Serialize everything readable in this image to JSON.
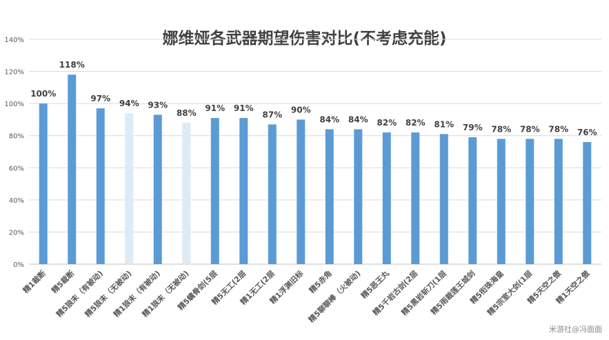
{
  "watermark": "米游社@冯面面",
  "chart_data": {
    "type": "bar",
    "title": "娜维娅各武器期望伤害对比(不考虑充能)",
    "xlabel": "",
    "ylabel": "",
    "ylim": [
      0,
      140
    ],
    "ytick_labels": [
      "0%",
      "20%",
      "40%",
      "60%",
      "80%",
      "100%",
      "120%",
      "140%"
    ],
    "grid": true,
    "colors": {
      "primary": "#5b9bd5",
      "light": "#ddebf7",
      "label": "#404040",
      "grid": "#d9d9d9",
      "tick": "#595959"
    },
    "categories": [
      "精1裁断",
      "精5裁断",
      "精5狼末（有被动)",
      "精5狼末（无被动)",
      "精1狼末（有被动)",
      "精1狼末（无被动)",
      "精5螭骨剑(5层",
      "精5无工(2层",
      "精1无工(2层",
      "精1浮渊旧标",
      "精5赤角",
      "精5聊聊棒（火被动)",
      "精5恶王丸",
      "精5千岩古剑(2层",
      "精5黑岩斩刀(1层",
      "精5雨裁莲王城剑",
      "精5衔珠海皇",
      "精5宗室大剑(1层",
      "精5天空之傲",
      "精1天空之傲"
    ],
    "values": [
      100,
      118,
      97,
      94,
      93,
      88,
      91,
      91,
      87,
      90,
      84,
      84,
      82,
      82,
      81,
      79,
      78,
      78,
      78,
      76
    ],
    "value_labels": [
      "100%",
      "118%",
      "97%",
      "94%",
      "93%",
      "88%",
      "91%",
      "91%",
      "87%",
      "90%",
      "84%",
      "84%",
      "82%",
      "82%",
      "81%",
      "79%",
      "78%",
      "78%",
      "78%",
      "76%"
    ],
    "bar_shades": [
      "primary",
      "primary",
      "primary",
      "light",
      "primary",
      "light",
      "primary",
      "primary",
      "primary",
      "primary",
      "primary",
      "primary",
      "primary",
      "primary",
      "primary",
      "primary",
      "primary",
      "primary",
      "primary",
      "primary"
    ]
  }
}
